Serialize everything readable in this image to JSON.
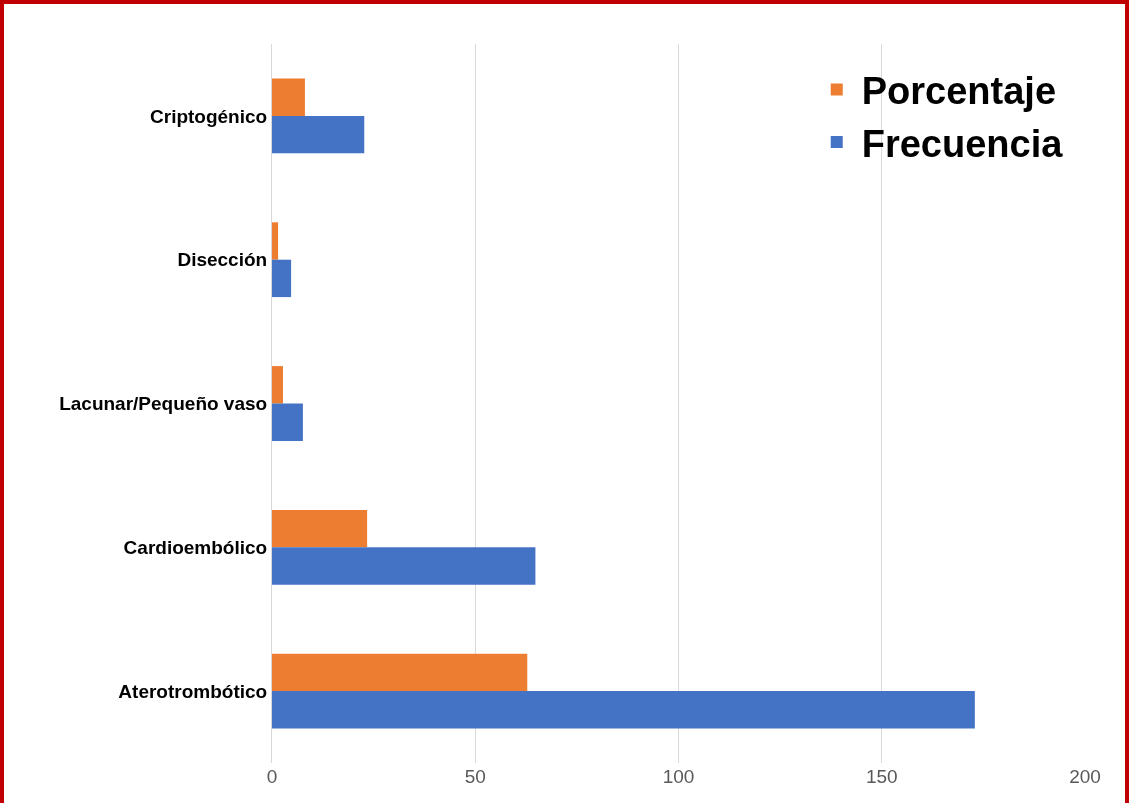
{
  "chart_data": {
    "type": "bar",
    "orientation": "horizontal",
    "categories": [
      "Criptogénico",
      "Disección",
      "Lacunar/Pequeño vaso",
      "Cardioembólico",
      "Aterotrombótico"
    ],
    "series": [
      {
        "name": "Porcentaje",
        "color": "#ed7d31",
        "values": [
          8.1,
          1.5,
          2.7,
          23.4,
          62.8
        ]
      },
      {
        "name": "Frecuencia",
        "color": "#4472c4",
        "values": [
          22.7,
          4.7,
          7.6,
          64.8,
          172.9
        ]
      }
    ],
    "xlim": [
      0,
      200
    ],
    "xticks": [
      0,
      50,
      100,
      150,
      200
    ],
    "grid": "x",
    "legend": "top right"
  }
}
